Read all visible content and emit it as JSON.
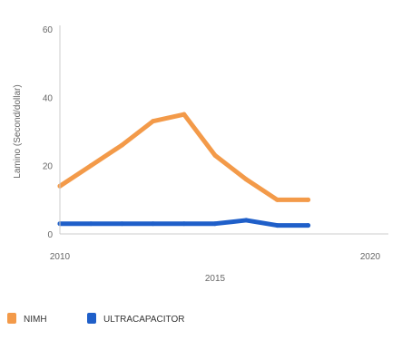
{
  "chart_data": {
    "type": "line",
    "title": "",
    "xlabel": "2015",
    "ylabel": "Lamino (Second/dollar)",
    "ylim": [
      0,
      60
    ],
    "yticks": [
      0,
      20,
      40,
      60
    ],
    "xlim": [
      2010,
      2020
    ],
    "xticks": [
      2010,
      2020
    ],
    "grid": false,
    "legend": "bottom-left",
    "series": [
      {
        "name": "NIMH",
        "color": "#f39a49",
        "x": [
          2010,
          2011,
          2012,
          2013,
          2014,
          2015,
          2016,
          2017,
          2018
        ],
        "y": [
          14,
          20,
          26,
          33,
          35,
          23,
          16,
          10,
          10
        ]
      },
      {
        "name": "ULTRACAPACITOR",
        "color": "#1f5fc9",
        "x": [
          2010,
          2011,
          2012,
          2013,
          2014,
          2015,
          2016,
          2017,
          2018
        ],
        "y": [
          3,
          3,
          3,
          3,
          3,
          3,
          4,
          2.5,
          2.5
        ]
      }
    ]
  }
}
